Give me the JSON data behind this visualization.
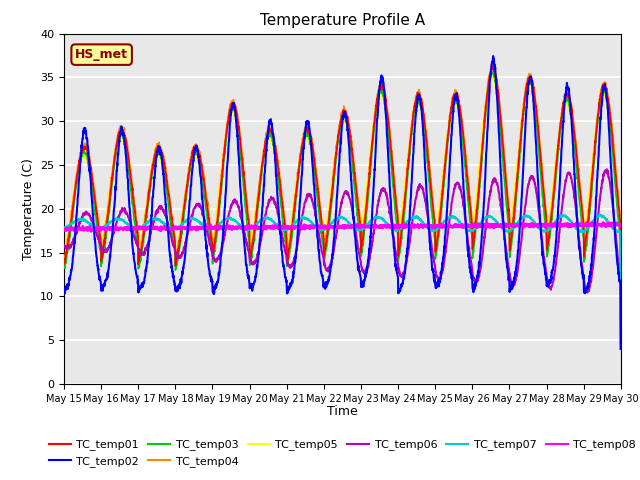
{
  "title": "Temperature Profile A",
  "xlabel": "Time",
  "ylabel": "Temperature (C)",
  "ylim": [
    0,
    40
  ],
  "annotation_text": "HS_met",
  "annotation_color": "#8B0000",
  "annotation_bg": "#FFFF99",
  "background_color": "#E8E8E8",
  "grid_color": "white",
  "series_colors": {
    "TC_temp01": "#FF0000",
    "TC_temp02": "#0000FF",
    "TC_temp03": "#00CC00",
    "TC_temp04": "#FF8800",
    "TC_temp05": "#FFFF00",
    "TC_temp06": "#BB00BB",
    "TC_temp07": "#00CCCC",
    "TC_temp08": "#FF00FF"
  },
  "n_days": 15,
  "start_day": 15,
  "points_per_day": 144,
  "base_temp": 17.5,
  "night_temp": 10.5,
  "day_peaks": [
    27,
    29,
    27,
    27,
    32,
    29,
    29,
    31,
    34,
    33,
    33,
    36,
    35,
    33,
    34
  ],
  "tc02_peaks": [
    29,
    29,
    27,
    27,
    32,
    30,
    30,
    31,
    35,
    33,
    33,
    37,
    35,
    34,
    34
  ],
  "x_tick_labels": [
    "May 15",
    "May 16",
    "May 17",
    "May 18",
    "May 19",
    "May 20",
    "May 21",
    "May 22",
    "May 23",
    "May 24",
    "May 25",
    "May 26",
    "May 27",
    "May 28",
    "May 29",
    "May 30"
  ],
  "figsize": [
    6.4,
    4.8
  ],
  "dpi": 100
}
